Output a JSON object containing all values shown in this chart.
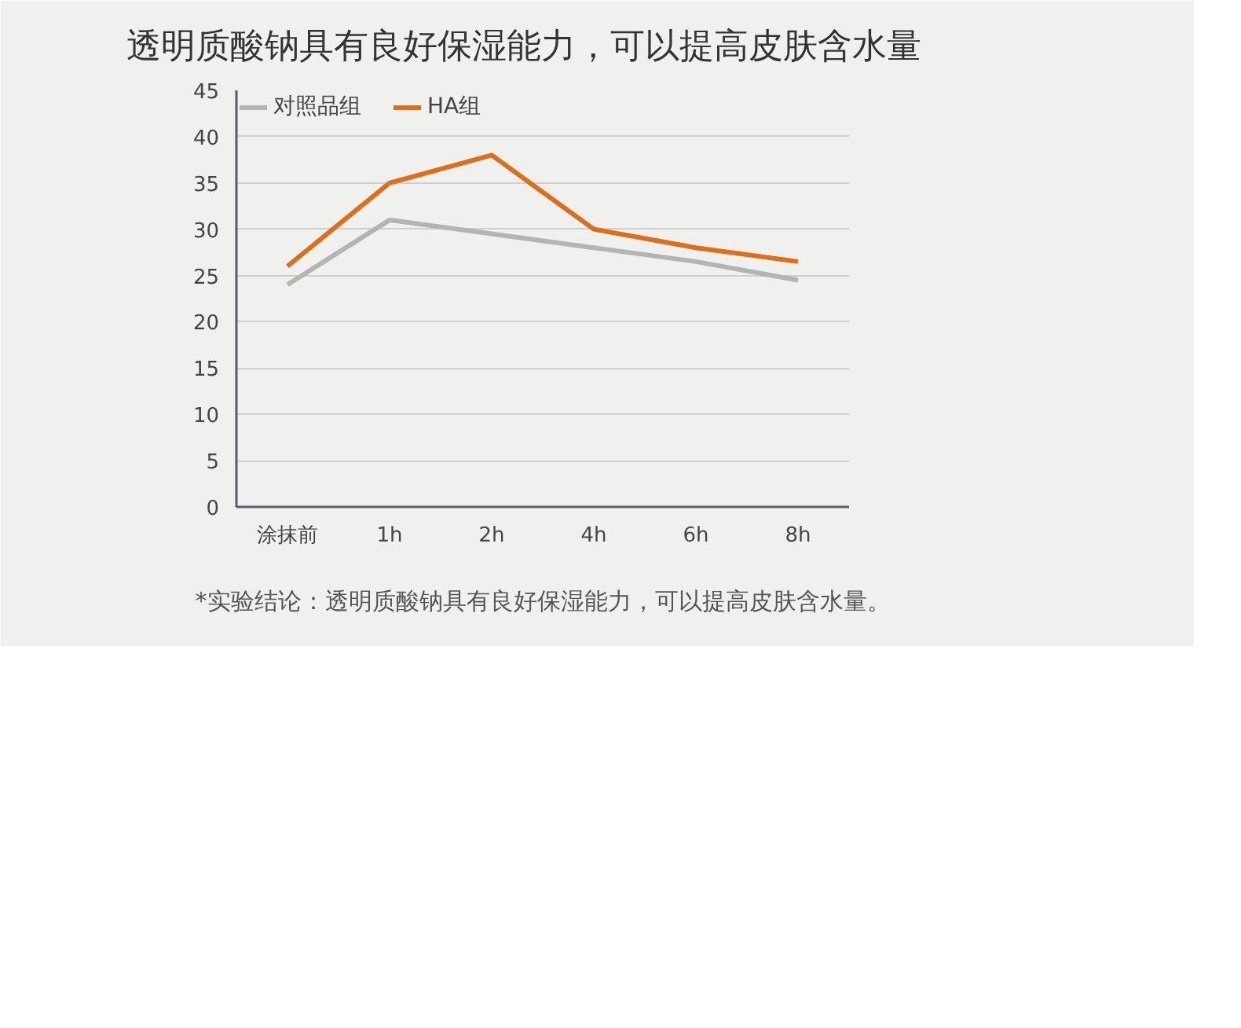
{
  "chart_data": {
    "type": "line",
    "title": "透明质酸钠具有良好保湿能力，可以提高皮肤含水量",
    "categories": [
      "涂抹前",
      "1h",
      "2h",
      "4h",
      "6h",
      "8h"
    ],
    "series": [
      {
        "name": "对照品组",
        "color": "#b4b4b4",
        "values": [
          24,
          31,
          29.5,
          28,
          26.5,
          24.5
        ]
      },
      {
        "name": "HA组",
        "color": "#de6f1a",
        "values": [
          26,
          35,
          38,
          30,
          28,
          26.5
        ]
      }
    ],
    "ylim": [
      0,
      45
    ],
    "yticks": [
      0,
      5,
      10,
      15,
      20,
      25,
      30,
      35,
      40,
      45
    ],
    "grid": "y",
    "legend": "top left",
    "marker": "none",
    "line_style": "solid",
    "annotations": [
      "*实验结论：透明质酸钠具有良好保湿能力，可以提高皮肤含水量。"
    ]
  }
}
